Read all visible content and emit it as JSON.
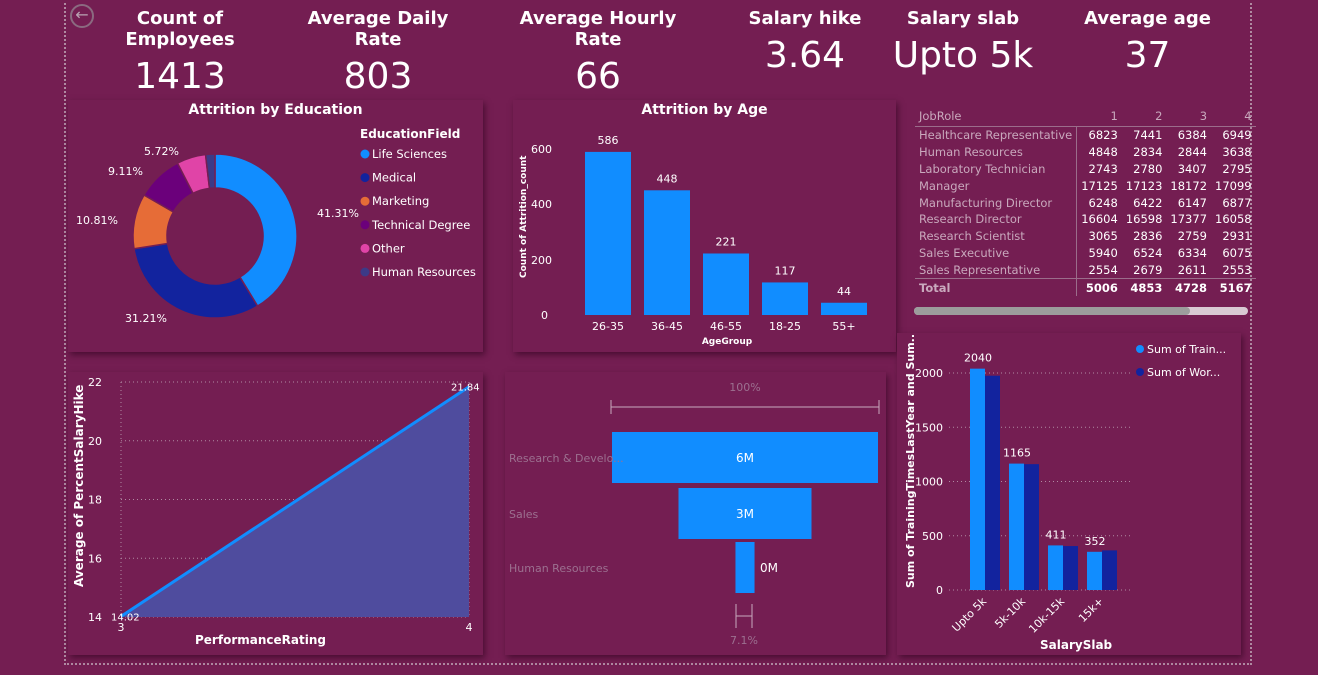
{
  "kpis": [
    {
      "label": "Count of Employees",
      "value": "1413"
    },
    {
      "label": "Average Daily Rate",
      "value": "803"
    },
    {
      "label": "Average Hourly Rate",
      "value": "66"
    },
    {
      "label": "Salary hike",
      "value": "3.64"
    },
    {
      "label": "Salary slab",
      "value": "Upto 5k"
    },
    {
      "label": "Average age",
      "value": "37"
    }
  ],
  "colors": {
    "background": "#741e52",
    "primary_blue": "#118dff",
    "dark_blue": "#12239e",
    "orange": "#e66c37",
    "purple": "#6b007b",
    "pink": "#e044a7",
    "navy": "#3c3a87"
  },
  "education": {
    "title": "Attrition by Education",
    "legend_title": "EducationField",
    "legend": [
      "Life Sciences",
      "Medical",
      "Marketing",
      "Technical Degree",
      "Other",
      "Human Resources"
    ],
    "labels": [
      "41.31%",
      "31.21%",
      "10.81%",
      "9.11%",
      "5.72%"
    ]
  },
  "age": {
    "title": "Attrition by Age",
    "ylabel": "Count of Attrition_count",
    "xlabel": "AgeGroup",
    "yticks": [
      "0",
      "200",
      "400",
      "600"
    ]
  },
  "jobrole": {
    "headers": [
      "JobRole",
      "1",
      "2",
      "3",
      "4"
    ],
    "rows": [
      [
        "Healthcare Representative",
        "6823",
        "7441",
        "6384",
        "6949"
      ],
      [
        "Human Resources",
        "4848",
        "2834",
        "2844",
        "3638"
      ],
      [
        "Laboratory Technician",
        "2743",
        "2780",
        "3407",
        "2795"
      ],
      [
        "Manager",
        "17125",
        "17123",
        "18172",
        "17099"
      ],
      [
        "Manufacturing Director",
        "6248",
        "6422",
        "6147",
        "6877"
      ],
      [
        "Research Director",
        "16604",
        "16598",
        "17377",
        "16058"
      ],
      [
        "Research Scientist",
        "3065",
        "2836",
        "2759",
        "2931"
      ],
      [
        "Sales Executive",
        "5940",
        "6524",
        "6334",
        "6075"
      ],
      [
        "Sales Representative",
        "2554",
        "2679",
        "2611",
        "2553"
      ]
    ],
    "total": [
      "Total",
      "5006",
      "4853",
      "4728",
      "5167"
    ]
  },
  "hike": {
    "ylabel": "Average of PercentSalaryHike",
    "xlabel": "PerformanceRating",
    "yticks": [
      "14",
      "16",
      "18",
      "20",
      "22"
    ],
    "xticks": [
      "3",
      "4"
    ],
    "start_label": "14.02",
    "end_label": "21.84"
  },
  "funnel": {
    "top_label": "100%",
    "bottom_label": "7.1%",
    "categories": [
      "Research & Develo...",
      "Sales",
      "Human Resources"
    ],
    "value_labels": [
      "6M",
      "3M",
      "0M"
    ]
  },
  "training": {
    "ylabel": "Sum of TrainingTimesLastYear and Sum...",
    "xlabel": "SalarySlab",
    "legend": [
      "Sum of Train...",
      "Sum of Wor..."
    ],
    "yticks": [
      "0",
      "500",
      "1000",
      "1500",
      "2000"
    ]
  },
  "chart_data": [
    {
      "type": "pie",
      "title": "Attrition by Education",
      "categories": [
        "Life Sciences",
        "Medical",
        "Marketing",
        "Technical Degree",
        "Other",
        "Human Resources"
      ],
      "values": [
        41.31,
        31.21,
        10.81,
        9.11,
        5.72,
        1.84
      ],
      "legend": "right"
    },
    {
      "type": "bar",
      "title": "Attrition by Age",
      "categories": [
        "26-35",
        "36-45",
        "46-55",
        "18-25",
        "55+"
      ],
      "values": [
        586,
        448,
        221,
        117,
        44
      ],
      "xlabel": "AgeGroup",
      "ylabel": "Count of Attrition_count",
      "ylim": [
        0,
        650
      ]
    },
    {
      "type": "area",
      "x": [
        3,
        4
      ],
      "values": [
        14.02,
        21.84
      ],
      "xlabel": "PerformanceRating",
      "ylabel": "Average of PercentSalaryHike",
      "ylim": [
        14,
        22
      ]
    },
    {
      "type": "bar",
      "categories": [
        "Research & Develo...",
        "Sales",
        "Human Resources"
      ],
      "values": [
        6,
        3,
        0.43
      ],
      "orientation": "horizontal-funnel"
    },
    {
      "type": "bar",
      "categories": [
        "Upto 5k",
        "5k-10k",
        "10k-15k",
        "15k+"
      ],
      "series": [
        {
          "name": "Sum of Train...",
          "values": [
            2040,
            1165,
            411,
            352
          ]
        },
        {
          "name": "Sum of Wor...",
          "values": [
            1975,
            1160,
            405,
            365
          ]
        }
      ],
      "xlabel": "SalarySlab",
      "ylabel": "Sum of TrainingTimesLastYear and Sum...",
      "ylim": [
        0,
        2100
      ],
      "legend": "top-right"
    }
  ]
}
